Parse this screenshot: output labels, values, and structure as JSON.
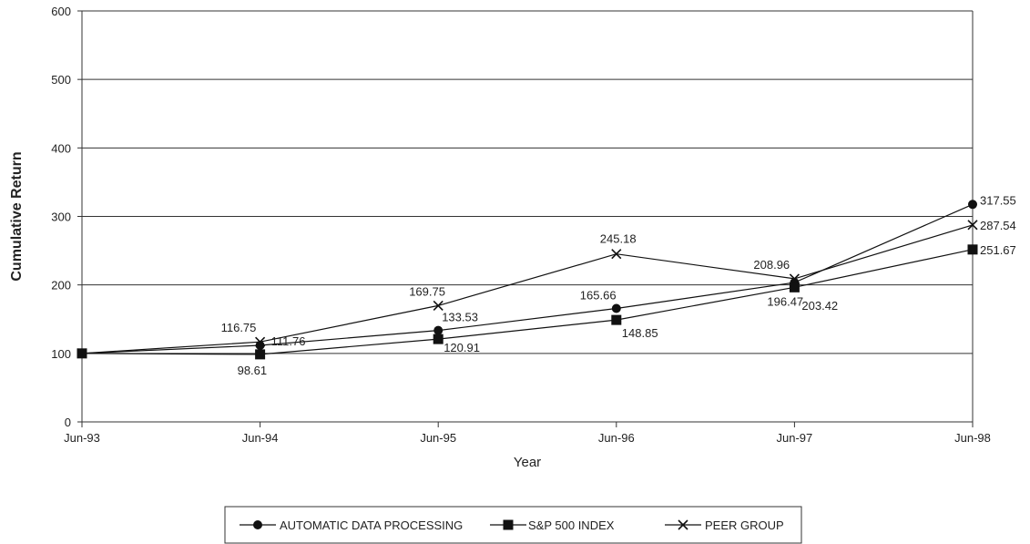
{
  "chart_data": {
    "type": "line",
    "x": [
      "Jun-93",
      "Jun-94",
      "Jun-95",
      "Jun-96",
      "Jun-97",
      "Jun-98"
    ],
    "xlabel": "Year",
    "ylabel": "Cumulative Return",
    "ylim": [
      0,
      600
    ],
    "yticks": [
      "0",
      "100",
      "200",
      "300",
      "400",
      "500",
      "600"
    ],
    "grid": "horizontal",
    "legend_position": "bottom",
    "series": [
      {
        "name": "AUTOMATIC DATA PROCESSING",
        "marker": "circle",
        "values": [
          100,
          111.76,
          133.53,
          165.66,
          203.42,
          317.55
        ],
        "labels": [
          "",
          "111.76",
          "133.53",
          "165.66",
          "203.42",
          "317.55"
        ]
      },
      {
        "name": "S&P 500 INDEX",
        "marker": "square",
        "values": [
          100,
          98.61,
          120.91,
          148.85,
          196.47,
          251.67
        ],
        "labels": [
          "",
          "98.61",
          "120.91",
          "148.85",
          "196.47",
          "251.67"
        ]
      },
      {
        "name": "PEER GROUP",
        "marker": "x",
        "values": [
          100,
          116.75,
          169.75,
          245.18,
          208.96,
          287.54
        ],
        "labels": [
          "",
          "116.75",
          "169.75",
          "245.18",
          "208.96",
          "287.54"
        ]
      }
    ]
  }
}
